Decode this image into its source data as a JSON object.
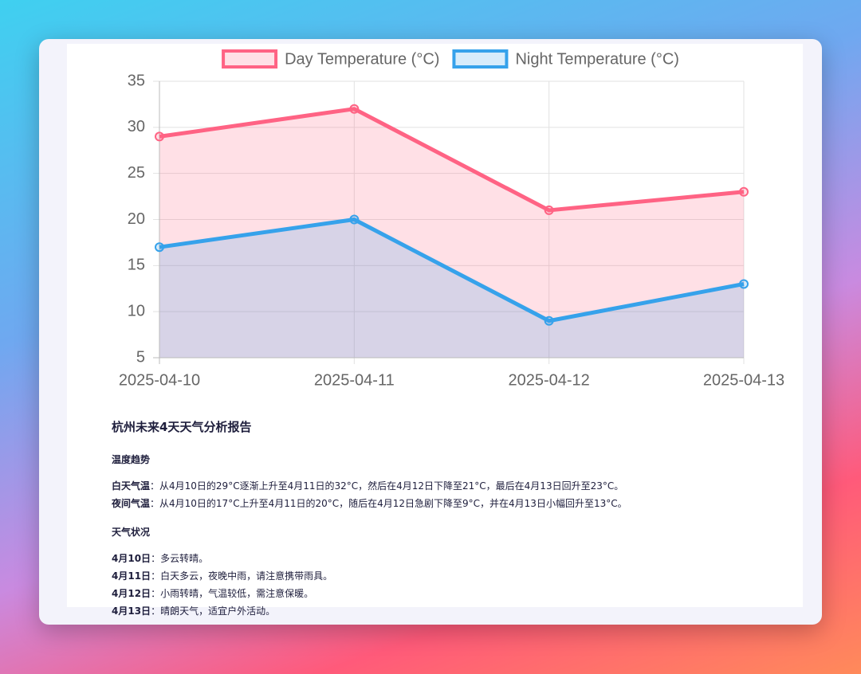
{
  "chart_data": {
    "type": "line",
    "categories": [
      "2025-04-10",
      "2025-04-11",
      "2025-04-12",
      "2025-04-13"
    ],
    "series": [
      {
        "name": "Day Temperature (°C)",
        "color": "#ff6384",
        "fill": "rgba(255,99,132,0.2)",
        "values": [
          29,
          32,
          21,
          23
        ]
      },
      {
        "name": "Night Temperature (°C)",
        "color": "#36a2eb",
        "fill": "rgba(54,162,235,0.2)",
        "values": [
          17,
          20,
          9,
          13
        ]
      }
    ],
    "ylim": [
      5,
      35
    ],
    "yticks": [
      5,
      10,
      15,
      20,
      25,
      30,
      35
    ],
    "grid": true,
    "legend": "top"
  },
  "report": {
    "title": "杭州未来4天天气分析报告",
    "sections": [
      {
        "heading": "温度趋势",
        "items": [
          {
            "label": "白天气温",
            "text": "：从4月10日的29°C逐渐上升至4月11日的32°C，然后在4月12日下降至21°C，最后在4月13日回升至23°C。"
          },
          {
            "label": "夜间气温",
            "text": "：从4月10日的17°C上升至4月11日的20°C，随后在4月12日急剧下降至9°C，并在4月13日小幅回升至13°C。"
          }
        ]
      },
      {
        "heading": "天气状况",
        "items": [
          {
            "label": "4月10日",
            "text": "：多云转晴。"
          },
          {
            "label": "4月11日",
            "text": "：白天多云，夜晚中雨，请注意携带雨具。"
          },
          {
            "label": "4月12日",
            "text": "：小雨转晴，气温较低，需注意保暖。"
          },
          {
            "label": "4月13日",
            "text": "：晴朗天气，适宜户外活动。"
          }
        ]
      }
    ]
  }
}
